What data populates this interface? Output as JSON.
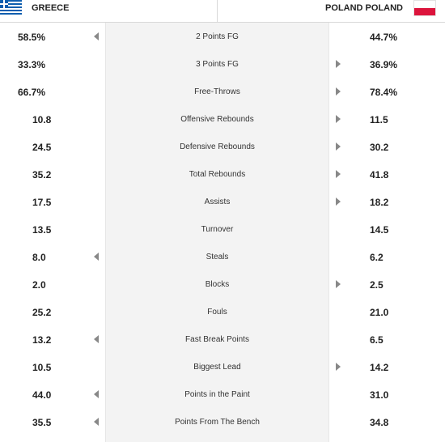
{
  "header": {
    "team_left": "GREECE",
    "team_right": "POLAND POLAND",
    "flag_left_icon": "greece-flag-icon",
    "flag_right_icon": "poland-flag-icon"
  },
  "colors": {
    "arrow": "#888888",
    "center_bg": "#f3f3f3",
    "poland_red": "#dc143c",
    "greece_blue": "#0d5eaf"
  },
  "stats": [
    {
      "left": "58.5%",
      "label": "2 Points FG",
      "right": "44.7%",
      "leader": "left"
    },
    {
      "left": "33.3%",
      "label": "3 Points FG",
      "right": "36.9%",
      "leader": "right"
    },
    {
      "left": "66.7%",
      "label": "Free-Throws",
      "right": "78.4%",
      "leader": "right"
    },
    {
      "left": "10.8",
      "label": "Offensive Rebounds",
      "right": "11.5",
      "leader": "right"
    },
    {
      "left": "24.5",
      "label": "Defensive Rebounds",
      "right": "30.2",
      "leader": "right"
    },
    {
      "left": "35.2",
      "label": "Total Rebounds",
      "right": "41.8",
      "leader": "right"
    },
    {
      "left": "17.5",
      "label": "Assists",
      "right": "18.2",
      "leader": "right"
    },
    {
      "left": "13.5",
      "label": "Turnover",
      "right": "14.5",
      "leader": "none"
    },
    {
      "left": "8.0",
      "label": "Steals",
      "right": "6.2",
      "leader": "left"
    },
    {
      "left": "2.0",
      "label": "Blocks",
      "right": "2.5",
      "leader": "right"
    },
    {
      "left": "25.2",
      "label": "Fouls",
      "right": "21.0",
      "leader": "none"
    },
    {
      "left": "13.2",
      "label": "Fast Break Points",
      "right": "6.5",
      "leader": "left"
    },
    {
      "left": "10.5",
      "label": "Biggest Lead",
      "right": "14.2",
      "leader": "right"
    },
    {
      "left": "44.0",
      "label": "Points in the Paint",
      "right": "31.0",
      "leader": "left"
    },
    {
      "left": "35.5",
      "label": "Points From The Bench",
      "right": "34.8",
      "leader": "left"
    }
  ]
}
